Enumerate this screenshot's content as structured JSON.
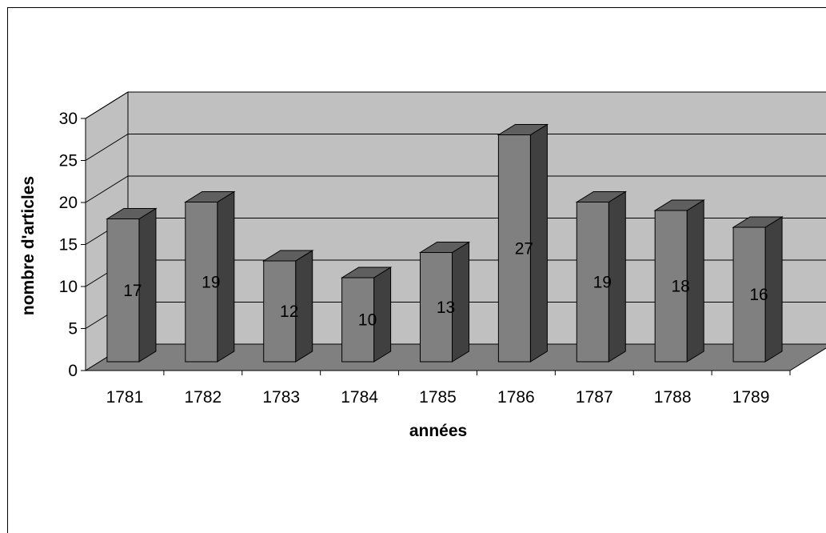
{
  "chart_data": {
    "type": "bar",
    "style": "3d",
    "title": "",
    "xlabel": "années",
    "ylabel": "nombre d'articles",
    "categories": [
      "1781",
      "1782",
      "1783",
      "1784",
      "1785",
      "1786",
      "1787",
      "1788",
      "1789"
    ],
    "values": [
      17,
      19,
      12,
      10,
      13,
      27,
      19,
      18,
      16
    ],
    "data_labels": [
      "17",
      "19",
      "12",
      "10",
      "13",
      "27",
      "19",
      "18",
      "16"
    ],
    "ylim": [
      0,
      30
    ],
    "yticks": [
      "0",
      "5",
      "10",
      "15",
      "20",
      "25",
      "30"
    ],
    "grid": true,
    "legend": "none",
    "colors": {
      "bar_front": "#808080",
      "bar_side": "#404040",
      "bar_top": "#5f5f5f",
      "back_wall": "#c0c0c0",
      "floor": "#808080",
      "side_wall": "#c0c0c0"
    }
  }
}
